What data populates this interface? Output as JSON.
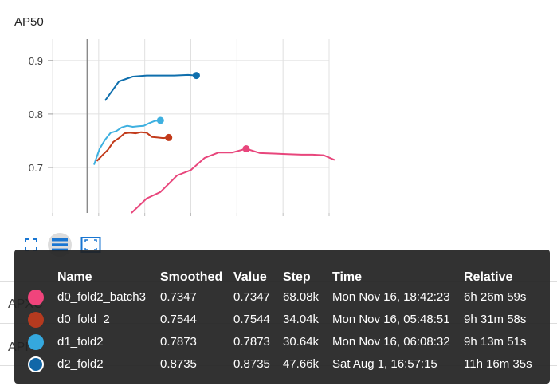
{
  "chart_title": "AP50",
  "chart_data": {
    "type": "line",
    "title": "AP50",
    "xlabel": "",
    "ylabel": "",
    "yticks": [
      "0.9",
      "0.8",
      "0.7"
    ],
    "ylim": [
      0.615,
      0.94
    ],
    "xlim": [
      0,
      100
    ],
    "grid": true,
    "series": [
      {
        "name": "d0_fold2_batch3",
        "color": "#e8467c",
        "x": [
          28.5,
          34,
          39,
          45,
          50,
          55,
          60,
          65,
          70,
          75,
          80,
          85,
          90,
          94,
          98,
          102
        ],
        "y": [
          0.615,
          0.642,
          0.654,
          0.685,
          0.695,
          0.718,
          0.728,
          0.728,
          0.735,
          0.727,
          0.726,
          0.725,
          0.724,
          0.724,
          0.723,
          0.714
        ],
        "marker": {
          "x": 70,
          "y": 0.735
        }
      },
      {
        "name": "d0_fold_2",
        "color": "#c23a1a",
        "x": [
          16,
          18,
          20,
          22,
          24,
          26,
          28,
          30,
          32,
          34,
          36,
          38,
          40,
          42
        ],
        "y": [
          0.712,
          0.723,
          0.733,
          0.748,
          0.755,
          0.764,
          0.765,
          0.764,
          0.766,
          0.765,
          0.757,
          0.756,
          0.755,
          0.756
        ],
        "marker": {
          "x": 42,
          "y": 0.756
        }
      },
      {
        "name": "d1_fold2",
        "color": "#3eb0e0",
        "x": [
          15,
          17,
          19,
          21,
          23,
          25,
          27,
          29,
          31,
          33,
          35,
          37,
          39
        ],
        "y": [
          0.705,
          0.735,
          0.752,
          0.765,
          0.768,
          0.775,
          0.778,
          0.776,
          0.777,
          0.778,
          0.783,
          0.787,
          0.788
        ],
        "marker": {
          "x": 39,
          "y": 0.788
        }
      },
      {
        "name": "d2_fold2",
        "color": "#0f6fad",
        "x": [
          19,
          24,
          29,
          34,
          39,
          44,
          49,
          52
        ],
        "y": [
          0.825,
          0.861,
          0.87,
          0.872,
          0.872,
          0.872,
          0.873,
          0.872
        ],
        "marker": {
          "x": 52,
          "y": 0.872
        }
      }
    ]
  },
  "toolbar": {
    "icons": [
      "fullscreen-icon",
      "data-table-icon",
      "fit-domain-icon"
    ]
  },
  "background_labels": [
    "APXC",
    "API"
  ],
  "tooltip": {
    "headers": {
      "name": "Name",
      "smoothed": "Smoothed",
      "value": "Value",
      "step": "Step",
      "time": "Time",
      "relative": "Relative"
    },
    "rows": [
      {
        "name": "d0_fold2_batch3",
        "smoothed": "0.7347",
        "value": "0.7347",
        "step": "68.08k",
        "time": "Mon Nov 16, 18:42:23",
        "relative": "6h 26m 59s",
        "color": "#f0447c",
        "ring": false
      },
      {
        "name": "d0_fold_2",
        "smoothed": "0.7544",
        "value": "0.7544",
        "step": "34.04k",
        "time": "Mon Nov 16, 05:48:51",
        "relative": "9h 31m 58s",
        "color": "#b53a1f",
        "ring": false
      },
      {
        "name": "d1_fold2",
        "smoothed": "0.7873",
        "value": "0.7873",
        "step": "30.64k",
        "time": "Mon Nov 16, 06:08:32",
        "relative": "9h 13m 51s",
        "color": "#35a8de",
        "ring": false
      },
      {
        "name": "d2_fold2",
        "smoothed": "0.8735",
        "value": "0.8735",
        "step": "47.66k",
        "time": "Sat Aug 1, 16:57:15",
        "relative": "11h 16m 35s",
        "color": "#1167a8",
        "ring": true
      }
    ]
  }
}
